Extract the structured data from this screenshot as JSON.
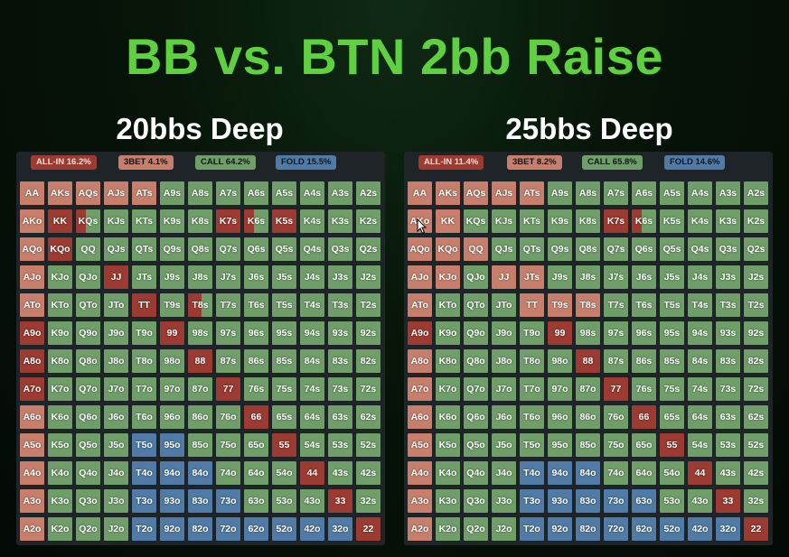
{
  "title": "BB vs. BTN 2bb Raise",
  "colors": {
    "allin": "#9c3b32",
    "bet": "#c77f6c",
    "call": "#6f9e69",
    "fold": "#4f7ba6",
    "title_green": "#5fd03f"
  },
  "hands": [
    [
      "AA",
      "AKs",
      "AQs",
      "AJs",
      "ATs",
      "A9s",
      "A8s",
      "A7s",
      "A6s",
      "A5s",
      "A4s",
      "A3s",
      "A2s"
    ],
    [
      "AKo",
      "KK",
      "KQs",
      "KJs",
      "KTs",
      "K9s",
      "K8s",
      "K7s",
      "K6s",
      "K5s",
      "K4s",
      "K3s",
      "K2s"
    ],
    [
      "AQo",
      "KQo",
      "QQ",
      "QJs",
      "QTs",
      "Q9s",
      "Q8s",
      "Q7s",
      "Q6s",
      "Q5s",
      "Q4s",
      "Q3s",
      "Q2s"
    ],
    [
      "AJo",
      "KJo",
      "QJo",
      "JJ",
      "JTs",
      "J9s",
      "J8s",
      "J7s",
      "J6s",
      "J5s",
      "J4s",
      "J3s",
      "J2s"
    ],
    [
      "ATo",
      "KTo",
      "QTo",
      "JTo",
      "TT",
      "T9s",
      "T8s",
      "T7s",
      "T6s",
      "T5s",
      "T4s",
      "T3s",
      "T2s"
    ],
    [
      "A9o",
      "K9o",
      "Q9o",
      "J9o",
      "T9o",
      "99",
      "98s",
      "97s",
      "96s",
      "95s",
      "94s",
      "93s",
      "92s"
    ],
    [
      "A8o",
      "K8o",
      "Q8o",
      "J8o",
      "T8o",
      "98o",
      "88",
      "87s",
      "86s",
      "85s",
      "84s",
      "83s",
      "82s"
    ],
    [
      "A7o",
      "K7o",
      "Q7o",
      "J7o",
      "T7o",
      "97o",
      "87o",
      "77",
      "76s",
      "75s",
      "74s",
      "73s",
      "72s"
    ],
    [
      "A6o",
      "K6o",
      "Q6o",
      "J6o",
      "T6o",
      "96o",
      "86o",
      "76o",
      "66",
      "65s",
      "64s",
      "63s",
      "62s"
    ],
    [
      "A5o",
      "K5o",
      "Q5o",
      "J5o",
      "T5o",
      "95o",
      "85o",
      "75o",
      "65o",
      "55",
      "54s",
      "53s",
      "52s"
    ],
    [
      "A4o",
      "K4o",
      "Q4o",
      "J4o",
      "T4o",
      "94o",
      "84o",
      "74o",
      "64o",
      "54o",
      "44",
      "43s",
      "42s"
    ],
    [
      "A3o",
      "K3o",
      "Q3o",
      "J3o",
      "T3o",
      "93o",
      "83o",
      "73o",
      "63o",
      "53o",
      "43o",
      "33",
      "32s"
    ],
    [
      "A2o",
      "K2o",
      "Q2o",
      "J2o",
      "T2o",
      "92o",
      "82o",
      "72o",
      "62o",
      "52o",
      "42o",
      "32o",
      "22"
    ]
  ],
  "panels": [
    {
      "id": "left",
      "title": "20bbs Deep",
      "legend": [
        {
          "key": "allin",
          "label": "ALL-IN 16.2%"
        },
        {
          "key": "bet",
          "label": "3BET 4.1%"
        },
        {
          "key": "call",
          "label": "CALL 64.2%"
        },
        {
          "key": "fold",
          "label": "FOLD 15.5%"
        }
      ],
      "grid": [
        "BBBBBCCCCCCCC",
        "BAcCCCCAcACCC",
        "BACCCCCCCCCCC",
        "BCCACCCCCCCCC",
        "BCCCACaCCCCCC",
        "ACCCCACCCCCCC",
        "ACCCCCACCCCCC",
        "ACCCCCCACCCCC",
        "BCCCCCCCACCCC",
        "BCCCFFCCCACCC",
        "BCCCFFFCCCACC",
        "BCCCFFFFCCCAC",
        "BCCCFFFFFFFFA"
      ]
    },
    {
      "id": "right",
      "title": "25bbs Deep",
      "legend": [
        {
          "key": "allin",
          "label": "ALL-IN 11.4%"
        },
        {
          "key": "bet",
          "label": "3BET 8.2%"
        },
        {
          "key": "call",
          "label": "CALL 65.8%"
        },
        {
          "key": "fold",
          "label": "FOLD 14.6%"
        }
      ],
      "grid": [
        "BBBBBCCCCCCCC",
        "BBCCCCCAcCCCC",
        "BBBCCCCCCCCCC",
        "BBCBBCCCCCCCC",
        "BCCCBBBCCCCCC",
        "ACCCCACCCCCCC",
        "BCCCCCACCCCCC",
        "BCCCCCCACCCCC",
        "BCCCCCCCACCCC",
        "BCCCCCCCCACCC",
        "BCCCFFFCCCACC",
        "BCCCFFFFFCCAC",
        "BCCCFFFFFFFFA"
      ]
    }
  ]
}
